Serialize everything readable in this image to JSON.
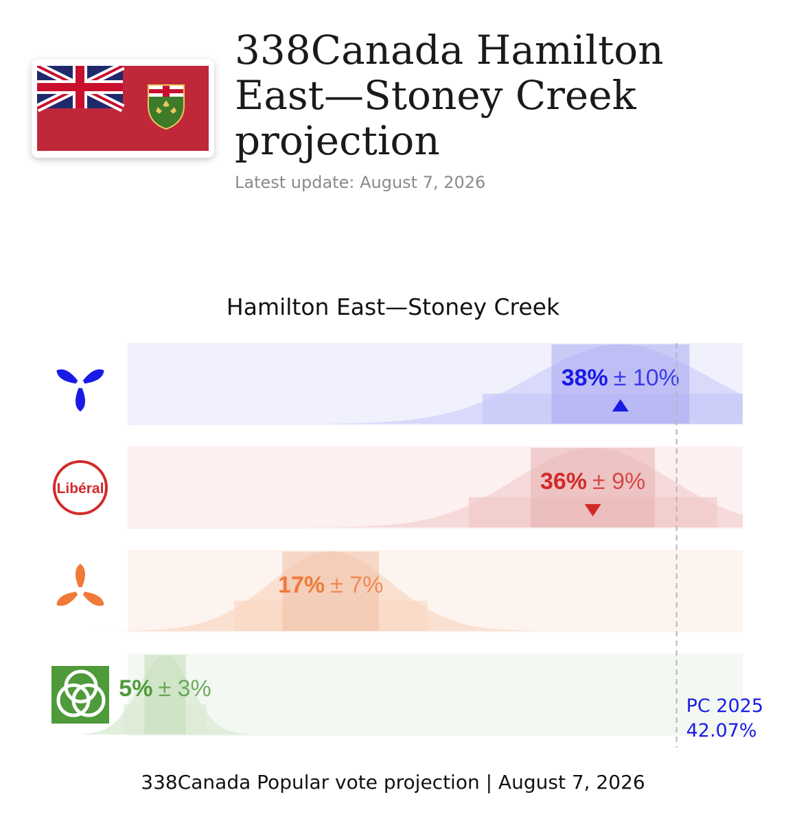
{
  "header": {
    "title": "338Canada Hamilton East—Stoney Creek projection",
    "update": "Latest update: August 7, 2026",
    "flag_icon": "ontario-flag-icon"
  },
  "footer": "338Canada Popular vote projection | August 7, 2026",
  "colors": {
    "pc": "#1a1ae6",
    "liberal": "#d22a2a",
    "ndp": "#f07a3a",
    "green": "#4f9a3a",
    "flag_red": "#c0283a"
  },
  "chart_data": {
    "type": "area",
    "title": "Hamilton East—Stoney Creek",
    "xlim": [
      0,
      49
    ],
    "grid": false,
    "series": [
      {
        "party": "pc",
        "icon": "pc-trillium-icon",
        "mean": 38,
        "moe": 10,
        "label_value": "38%",
        "label_moe": "± 10%",
        "trend": "up",
        "color": "#1a1ae6",
        "band_bg": "#f1f1fd",
        "curve_fill": "#d5d5fa",
        "outer_fill": "#c7c7f8",
        "inner_fill": "#a9a9f2"
      },
      {
        "party": "liberal",
        "icon": "liberal-logo-icon",
        "mean": 36,
        "moe": 9,
        "label_value": "36%",
        "label_moe": "± 9%",
        "trend": "down",
        "color": "#d22a2a",
        "band_bg": "#fcf0f0",
        "curve_fill": "#f5d5d5",
        "outer_fill": "#f2c9c9",
        "inner_fill": "#e8b0b0"
      },
      {
        "party": "ndp",
        "icon": "ndp-trillium-icon",
        "mean": 17,
        "moe": 7,
        "label_value": "17%",
        "label_moe": "± 7%",
        "trend": "none",
        "color": "#f07a3a",
        "band_bg": "#fdf4ef",
        "curve_fill": "#f9dccb",
        "outer_fill": "#f8d8c5",
        "inner_fill": "#f1c0a5"
      },
      {
        "party": "green",
        "icon": "green-party-icon",
        "mean": 5,
        "moe": 3,
        "label_value": "5%",
        "label_moe": "± 3%",
        "trend": "none",
        "color": "#4f9a3a",
        "band_bg": "#f3f8f2",
        "curve_fill": "#dcecd7",
        "outer_fill": "#dbead5",
        "inner_fill": "#c2dcb8"
      }
    ],
    "reference_line": {
      "value": 42.07,
      "label_line1": "PC 2025",
      "label_line2": "42.07%",
      "color": "#1a1ae6"
    }
  }
}
